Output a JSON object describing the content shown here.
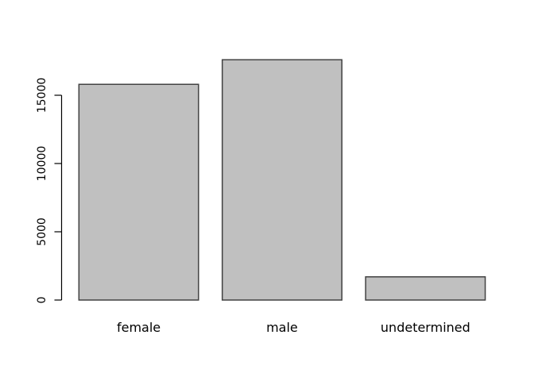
{
  "chart_data": {
    "type": "bar",
    "title": "",
    "xlabel": "",
    "ylabel": "",
    "categories": [
      "female",
      "male",
      "undetermined"
    ],
    "values": [
      15800,
      17600,
      1700
    ],
    "yticks": [
      0,
      5000,
      10000,
      15000
    ],
    "ylim": [
      0,
      18200
    ],
    "grid": false,
    "legend_position": "none",
    "colors": {
      "background": "#ffffff",
      "bar_fill": "#c0c0c0",
      "bar_border": "#424242",
      "axis": "#000000",
      "text": "#000000"
    }
  }
}
